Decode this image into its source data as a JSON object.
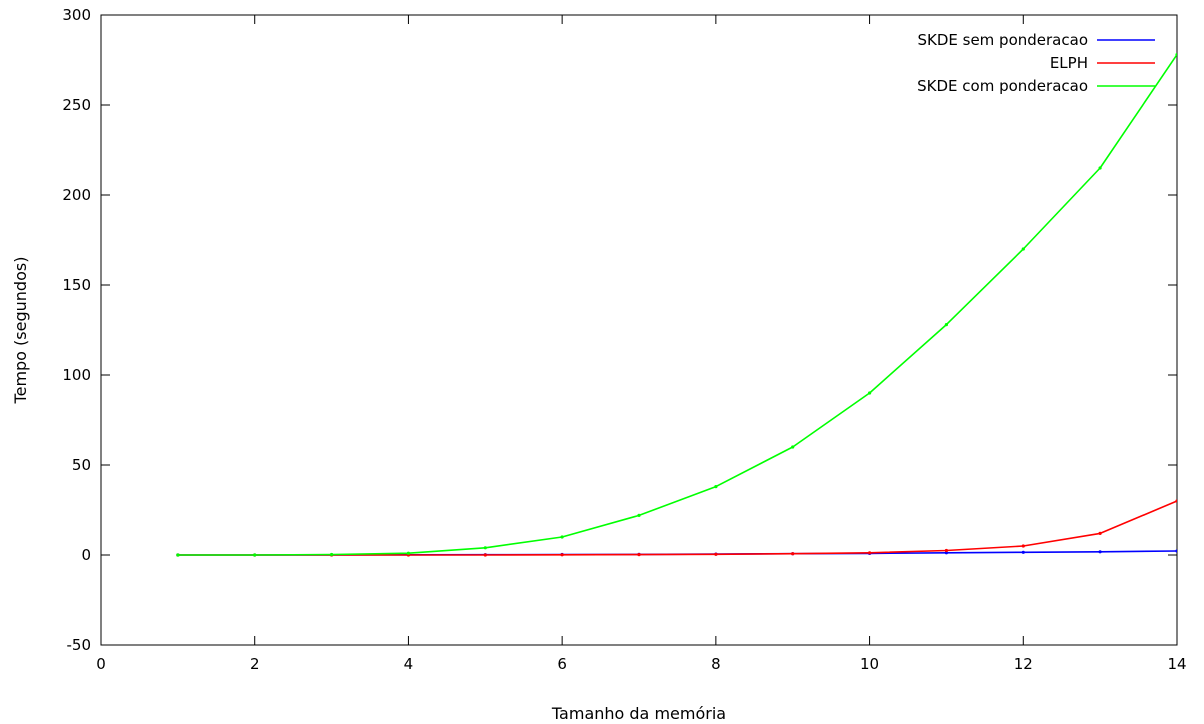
{
  "chart_data": {
    "type": "line",
    "xlabel": "Tamanho da memória",
    "ylabel": "Tempo (segundos)",
    "xlim": [
      0,
      14
    ],
    "ylim": [
      -50,
      300
    ],
    "x_ticks": [
      0,
      2,
      4,
      6,
      8,
      10,
      12,
      14
    ],
    "y_ticks": [
      -50,
      0,
      50,
      100,
      150,
      200,
      250,
      300
    ],
    "grid": false,
    "legend_position": "top-right",
    "series": [
      {
        "name": "SKDE sem ponderacao",
        "color": "#0000ff",
        "x": [
          1,
          2,
          3,
          4,
          5,
          6,
          7,
          8,
          9,
          10,
          11,
          12,
          13,
          14
        ],
        "y": [
          0,
          0,
          0.05,
          0.1,
          0.15,
          0.25,
          0.35,
          0.5,
          0.7,
          0.9,
          1.2,
          1.5,
          1.8,
          2.2
        ]
      },
      {
        "name": "ELPH",
        "color": "#ff0000",
        "x": [
          1,
          2,
          3,
          4,
          5,
          6,
          7,
          8,
          9,
          10,
          11,
          12,
          13,
          14
        ],
        "y": [
          0,
          0,
          0,
          0,
          0,
          0.1,
          0.2,
          0.4,
          0.7,
          1.2,
          2.5,
          5,
          12,
          30
        ]
      },
      {
        "name": "SKDE com ponderacao",
        "color": "#00ff00",
        "x": [
          1,
          2,
          3,
          4,
          5,
          6,
          7,
          8,
          9,
          10,
          11,
          12,
          13,
          14
        ],
        "y": [
          0,
          0,
          0.3,
          1,
          4,
          10,
          22,
          38,
          60,
          90,
          128,
          170,
          215,
          278
        ]
      }
    ]
  }
}
